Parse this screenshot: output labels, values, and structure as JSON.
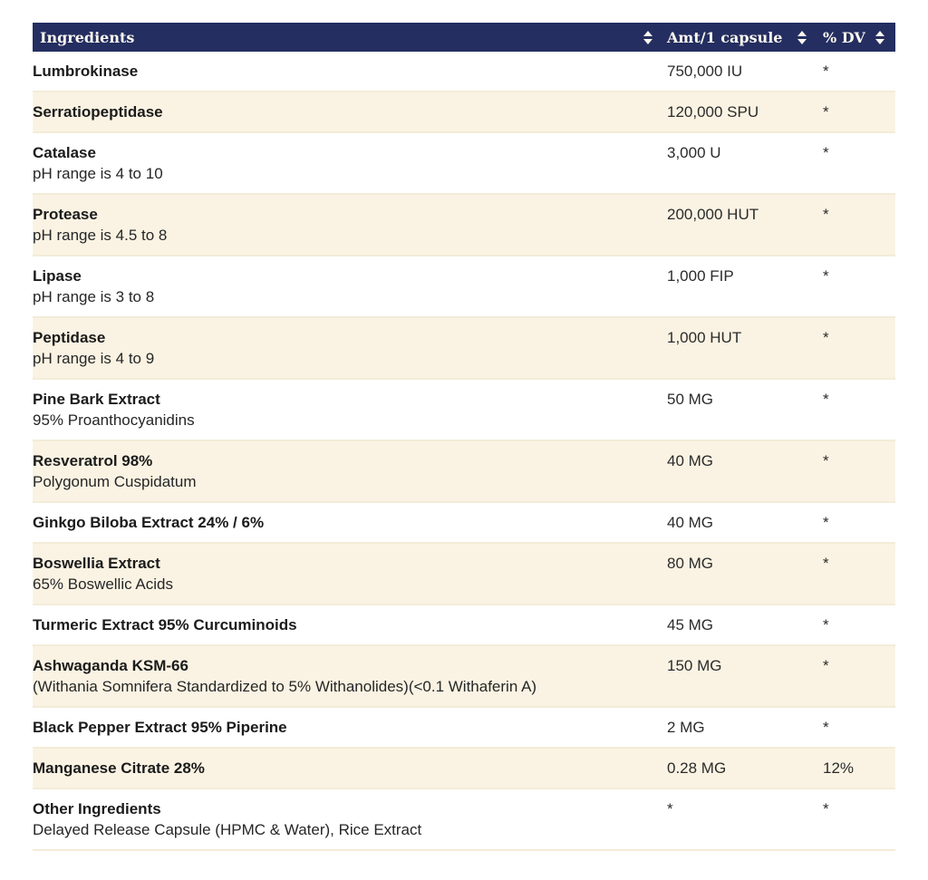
{
  "colors": {
    "header_bg": "#242e60",
    "header_text": "#fbf8ef",
    "row_alt_bg": "#faf3e3",
    "row_border": "#f3ecd8",
    "body_text": "#1b1b1b"
  },
  "table": {
    "headers": [
      {
        "label": "Ingredients"
      },
      {
        "label": "Amt/1 capsule"
      },
      {
        "label": "% DV"
      }
    ],
    "rows": [
      {
        "name": "Lumbrokinase",
        "subtitle": "",
        "amount": "750,000 IU",
        "dv": "*"
      },
      {
        "name": "Serratiopeptidase",
        "subtitle": "",
        "amount": "120,000 SPU",
        "dv": "*"
      },
      {
        "name": "Catalase",
        "subtitle": "pH range is 4 to 10",
        "amount": "3,000 U",
        "dv": "*"
      },
      {
        "name": "Protease",
        "subtitle": "pH range is 4.5 to 8",
        "amount": "200,000 HUT",
        "dv": "*"
      },
      {
        "name": "Lipase",
        "subtitle": "pH range is 3 to 8",
        "amount": "1,000 FIP",
        "dv": "*"
      },
      {
        "name": "Peptidase",
        "subtitle": "pH range is 4 to 9",
        "amount": "1,000 HUT",
        "dv": "*"
      },
      {
        "name": "Pine Bark Extract",
        "subtitle": "95% Proanthocyanidins",
        "amount": "50 MG",
        "dv": "*"
      },
      {
        "name": "Resveratrol 98%",
        "subtitle": "Polygonum Cuspidatum",
        "amount": "40 MG",
        "dv": "*"
      },
      {
        "name": "Ginkgo Biloba Extract 24% / 6%",
        "subtitle": "",
        "amount": "40 MG",
        "dv": "*"
      },
      {
        "name": "Boswellia Extract",
        "subtitle": "65% Boswellic Acids",
        "amount": "80 MG",
        "dv": "*"
      },
      {
        "name": "Turmeric Extract 95% Curcuminoids",
        "subtitle": "",
        "amount": "45 MG",
        "dv": "*"
      },
      {
        "name": "Ashwaganda KSM-66",
        "subtitle": "(Withania Somnifera Standardized to 5% Withanolides)(<0.1 Withaferin A)",
        "amount": "150 MG",
        "dv": "*"
      },
      {
        "name": "Black Pepper Extract 95% Piperine",
        "subtitle": "",
        "amount": "2 MG",
        "dv": "*"
      },
      {
        "name": "Manganese Citrate 28%",
        "subtitle": "",
        "amount": "0.28 MG",
        "dv": "12%"
      },
      {
        "name": "Other Ingredients",
        "subtitle": "Delayed Release Capsule (HPMC & Water), Rice Extract",
        "amount": "*",
        "dv": "*"
      }
    ]
  }
}
